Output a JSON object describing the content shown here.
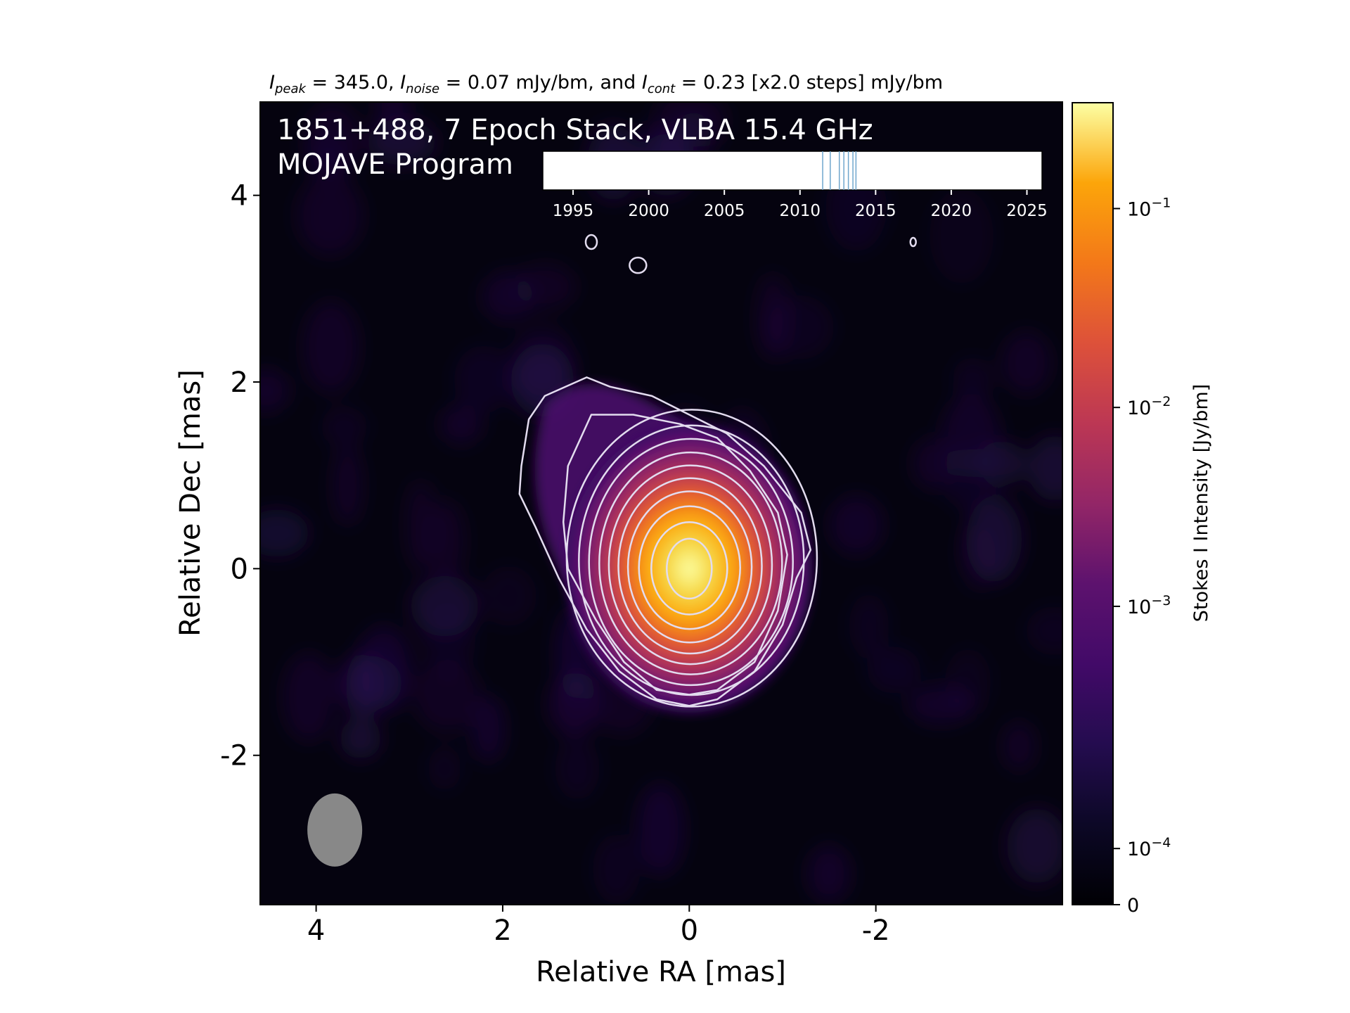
{
  "chart_data": {
    "type": "heatmap",
    "title_parts": {
      "peak_symbol": "I",
      "peak_sub": "peak",
      "peak_text": " = 345.0, ",
      "noise_symbol": "I",
      "noise_sub": "noise",
      "noise_text": " = 0.07 mJy/bm, and ",
      "cont_symbol": "I",
      "cont_sub": "cont",
      "cont_text": " = 0.23 [x2.0 steps] mJy/bm"
    },
    "overlay": {
      "line1": "1851+488, 7 Epoch Stack, VLBA 15.4 GHz",
      "line2": "MOJAVE Program"
    },
    "xlabel": "Relative RA [mas]",
    "ylabel": "Relative Dec [mas]",
    "xlim": [
      4.6,
      -4.0
    ],
    "ylim": [
      -3.6,
      5.0
    ],
    "xticks": [
      4,
      2,
      0,
      -2
    ],
    "yticks": [
      4,
      2,
      0,
      -2
    ],
    "xtick_labels": [
      "4",
      "2",
      "0",
      "-2"
    ],
    "ytick_labels": [
      "4",
      "2",
      "0",
      "-2"
    ],
    "colorbar": {
      "label": "Stokes I Intensity [Jy/bm]",
      "colormap": "inferno",
      "scale": "log",
      "range_jy": [
        0,
        0.345
      ],
      "ticks": [
        {
          "base": "10",
          "exp": "−1",
          "frac": 0.868
        },
        {
          "base": "10",
          "exp": "−2",
          "frac": 0.62
        },
        {
          "base": "10",
          "exp": "−3",
          "frac": 0.372
        },
        {
          "base": "10",
          "exp": "−4",
          "frac": 0.07
        },
        {
          "base": "0",
          "exp": "",
          "frac": 0.0
        }
      ]
    },
    "peak": {
      "ra": 0.0,
      "dec": 0.0,
      "value_mjy": 345.0
    },
    "noise_mjy": 0.07,
    "contour_base_mjy": 0.23,
    "contour_step": 2.0,
    "contour_levels_mjy": [
      0.23,
      0.46,
      0.92,
      1.84,
      3.68,
      7.36,
      14.72,
      29.44,
      58.88,
      117.76,
      235.52
    ],
    "beam": {
      "ra": 3.8,
      "dec": -2.8,
      "major_mas": 0.6,
      "minor_mas": 0.3
    },
    "epoch_timeline": {
      "xlim": [
        1993,
        2026
      ],
      "ticks": [
        1995,
        2000,
        2005,
        2010,
        2015,
        2020,
        2025
      ],
      "tick_labels": [
        "1995",
        "2000",
        "2005",
        "2010",
        "2015",
        "2020",
        "2025"
      ],
      "epochs": [
        2011.5,
        2012.0,
        2012.6,
        2012.9,
        2013.2,
        2013.5,
        2013.7
      ]
    },
    "colors": {
      "contour": "#e3dcef",
      "epoch_line": "#6fa6cd",
      "beam": "#888888"
    }
  }
}
